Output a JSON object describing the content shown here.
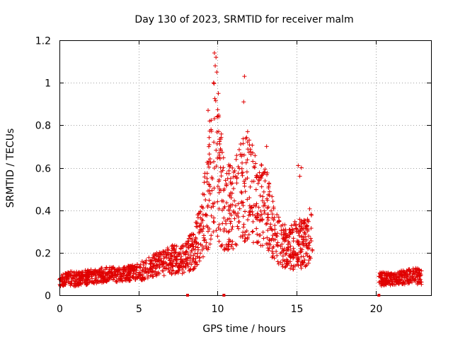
{
  "chart_data": {
    "type": "scatter",
    "title": "Day 130 of 2023, SRMTID for receiver malm",
    "xlabel": "GPS time / hours",
    "ylabel": "SRMTID / TECUs",
    "xlim": [
      0,
      23.5
    ],
    "ylim": [
      0,
      1.2
    ],
    "x_ticks": [
      0,
      5,
      10,
      15,
      20
    ],
    "x_tick_labels": [
      "0",
      "5",
      "10",
      "15",
      "20"
    ],
    "y_ticks": [
      0,
      0.2,
      0.4,
      0.6,
      0.8,
      1,
      1.2
    ],
    "y_tick_labels": [
      "0",
      "0.2",
      "0.4",
      "0.6",
      "0.8",
      "1",
      "1.2"
    ],
    "grid": true,
    "marker": "+",
    "color": "#e00000",
    "gap_markers_x": [
      8.1,
      10.4,
      20.2
    ],
    "envelope": [
      {
        "x": 0.0,
        "base": 0.07,
        "spread": 0.05
      },
      {
        "x": 1.0,
        "base": 0.07,
        "spread": 0.05
      },
      {
        "x": 2.0,
        "base": 0.08,
        "spread": 0.05
      },
      {
        "x": 3.0,
        "base": 0.09,
        "spread": 0.05
      },
      {
        "x": 4.0,
        "base": 0.09,
        "spread": 0.05
      },
      {
        "x": 5.0,
        "base": 0.1,
        "spread": 0.06
      },
      {
        "x": 6.0,
        "base": 0.13,
        "spread": 0.08
      },
      {
        "x": 7.0,
        "base": 0.15,
        "spread": 0.1
      },
      {
        "x": 8.0,
        "base": 0.16,
        "spread": 0.1
      },
      {
        "x": 8.5,
        "base": 0.2,
        "spread": 0.14
      },
      {
        "x": 9.0,
        "base": 0.28,
        "spread": 0.2
      },
      {
        "x": 9.5,
        "base": 0.45,
        "spread": 0.4
      },
      {
        "x": 9.8,
        "base": 0.6,
        "spread": 0.5
      },
      {
        "x": 10.2,
        "base": 0.45,
        "spread": 0.4
      },
      {
        "x": 10.5,
        "base": 0.35,
        "spread": 0.3
      },
      {
        "x": 11.0,
        "base": 0.38,
        "spread": 0.3
      },
      {
        "x": 11.5,
        "base": 0.45,
        "spread": 0.35
      },
      {
        "x": 12.0,
        "base": 0.45,
        "spread": 0.35
      },
      {
        "x": 12.5,
        "base": 0.4,
        "spread": 0.3
      },
      {
        "x": 13.0,
        "base": 0.38,
        "spread": 0.3
      },
      {
        "x": 13.5,
        "base": 0.28,
        "spread": 0.2
      },
      {
        "x": 14.0,
        "base": 0.22,
        "spread": 0.15
      },
      {
        "x": 14.5,
        "base": 0.2,
        "spread": 0.14
      },
      {
        "x": 15.0,
        "base": 0.22,
        "spread": 0.18
      },
      {
        "x": 15.5,
        "base": 0.22,
        "spread": 0.16
      },
      {
        "x": 16.0,
        "base": 0.28,
        "spread": 0.2
      }
    ],
    "envelope_late": [
      {
        "x": 20.2,
        "base": 0.07,
        "spread": 0.05
      },
      {
        "x": 21.0,
        "base": 0.07,
        "spread": 0.04
      },
      {
        "x": 22.0,
        "base": 0.08,
        "spread": 0.05
      },
      {
        "x": 22.8,
        "base": 0.08,
        "spread": 0.06
      }
    ],
    "outliers": [
      {
        "x": 9.8,
        "y": 1.14
      },
      {
        "x": 9.9,
        "y": 1.12
      },
      {
        "x": 9.85,
        "y": 1.08
      },
      {
        "x": 9.95,
        "y": 1.05
      },
      {
        "x": 9.75,
        "y": 1.0
      },
      {
        "x": 10.05,
        "y": 0.95
      },
      {
        "x": 11.7,
        "y": 1.03
      },
      {
        "x": 11.65,
        "y": 0.91
      },
      {
        "x": 9.4,
        "y": 0.87
      },
      {
        "x": 9.5,
        "y": 0.82
      },
      {
        "x": 11.9,
        "y": 0.77
      },
      {
        "x": 12.0,
        "y": 0.73
      },
      {
        "x": 13.1,
        "y": 0.7
      },
      {
        "x": 15.1,
        "y": 0.61
      },
      {
        "x": 15.3,
        "y": 0.6
      },
      {
        "x": 15.2,
        "y": 0.56
      },
      {
        "x": 10.8,
        "y": 0.61
      },
      {
        "x": 12.4,
        "y": 0.62
      }
    ]
  }
}
